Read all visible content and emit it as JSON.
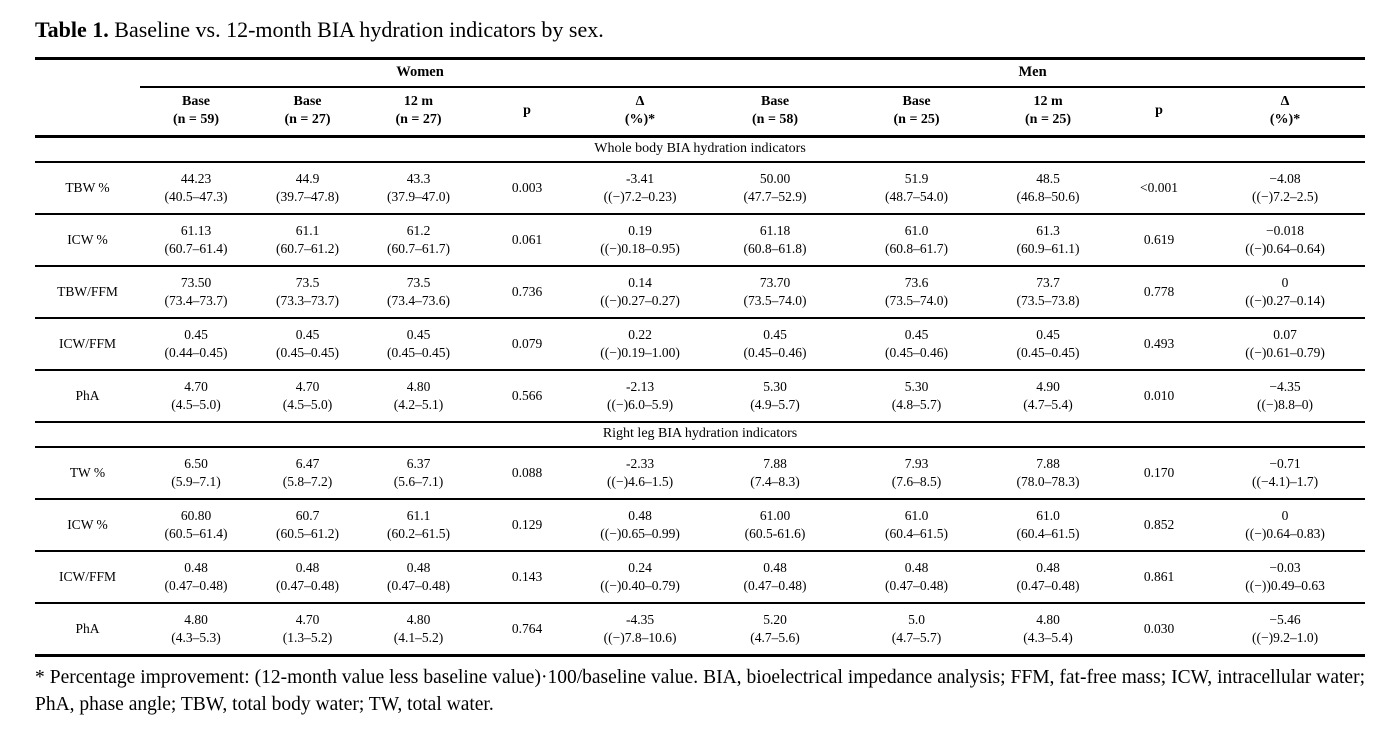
{
  "title": {
    "label": "Table 1.",
    "text": " Baseline vs. 12-month BIA hydration indicators by sex."
  },
  "table": {
    "groups": [
      {
        "label": "Women"
      },
      {
        "label": "Men"
      }
    ],
    "columns": [
      {
        "line1": "Base",
        "line2": "(n = 59)"
      },
      {
        "line1": "Base",
        "line2": "(n = 27)"
      },
      {
        "line1": "12 m",
        "line2": "(n = 27)"
      },
      {
        "line1": "p",
        "line2": ""
      },
      {
        "line1": "Δ",
        "line2": "(%)*"
      },
      {
        "line1": "Base",
        "line2": "(n = 58)"
      },
      {
        "line1": "Base",
        "line2": "(n = 25)"
      },
      {
        "line1": "12 m",
        "line2": "(n = 25)"
      },
      {
        "line1": "p",
        "line2": ""
      },
      {
        "line1": "Δ",
        "line2": "(%)*"
      }
    ],
    "sections": [
      {
        "header": "Whole body BIA hydration indicators",
        "rows": [
          {
            "label": "TBW %",
            "cells": [
              {
                "main": "44.23",
                "range": "(40.5–47.3)"
              },
              {
                "main": "44.9",
                "range": "(39.7–47.8)"
              },
              {
                "main": "43.3",
                "range": "(37.9–47.0)"
              },
              {
                "main": "0.003",
                "range": ""
              },
              {
                "main": "-3.41",
                "range": "((−)7.2–0.23)"
              },
              {
                "main": "50.00",
                "range": "(47.7–52.9)"
              },
              {
                "main": "51.9",
                "range": "(48.7–54.0)"
              },
              {
                "main": "48.5",
                "range": "(46.8–50.6)"
              },
              {
                "main": "<0.001",
                "range": ""
              },
              {
                "main": "−4.08",
                "range": "((−)7.2–2.5)"
              }
            ]
          },
          {
            "label": "ICW %",
            "cells": [
              {
                "main": "61.13",
                "range": "(60.7–61.4)"
              },
              {
                "main": "61.1",
                "range": "(60.7–61.2)"
              },
              {
                "main": "61.2",
                "range": "(60.7–61.7)"
              },
              {
                "main": "0.061",
                "range": ""
              },
              {
                "main": "0.19",
                "range": "((−)0.18–0.95)"
              },
              {
                "main": "61.18",
                "range": "(60.8–61.8)"
              },
              {
                "main": "61.0",
                "range": "(60.8–61.7)"
              },
              {
                "main": "61.3",
                "range": "(60.9–61.1)"
              },
              {
                "main": "0.619",
                "range": ""
              },
              {
                "main": "−0.018",
                "range": "((−)0.64–0.64)"
              }
            ]
          },
          {
            "label": "TBW/FFM",
            "cells": [
              {
                "main": "73.50",
                "range": "(73.4–73.7)"
              },
              {
                "main": "73.5",
                "range": "(73.3–73.7)"
              },
              {
                "main": "73.5",
                "range": "(73.4–73.6)"
              },
              {
                "main": "0.736",
                "range": ""
              },
              {
                "main": "0.14",
                "range": "((−)0.27–0.27)"
              },
              {
                "main": "73.70",
                "range": "(73.5–74.0)"
              },
              {
                "main": "73.6",
                "range": "(73.5–74.0)"
              },
              {
                "main": "73.7",
                "range": "(73.5–73.8)"
              },
              {
                "main": "0.778",
                "range": ""
              },
              {
                "main": "0",
                "range": "((−)0.27–0.14)"
              }
            ]
          },
          {
            "label": "ICW/FFM",
            "cells": [
              {
                "main": "0.45",
                "range": "(0.44–0.45)"
              },
              {
                "main": "0.45",
                "range": "(0.45–0.45)"
              },
              {
                "main": "0.45",
                "range": "(0.45–0.45)"
              },
              {
                "main": "0.079",
                "range": ""
              },
              {
                "main": "0.22",
                "range": "((−)0.19–1.00)"
              },
              {
                "main": "0.45",
                "range": "(0.45–0.46)"
              },
              {
                "main": "0.45",
                "range": "(0.45–0.46)"
              },
              {
                "main": "0.45",
                "range": "(0.45–0.45)"
              },
              {
                "main": "0.493",
                "range": ""
              },
              {
                "main": "0.07",
                "range": "((−)0.61–0.79)"
              }
            ]
          },
          {
            "label": "PhA",
            "cells": [
              {
                "main": "4.70",
                "range": "(4.5–5.0)"
              },
              {
                "main": "4.70",
                "range": "(4.5–5.0)"
              },
              {
                "main": "4.80",
                "range": "(4.2–5.1)"
              },
              {
                "main": "0.566",
                "range": ""
              },
              {
                "main": "-2.13",
                "range": "((−)6.0–5.9)"
              },
              {
                "main": "5.30",
                "range": "(4.9–5.7)"
              },
              {
                "main": "5.30",
                "range": "(4.8–5.7)"
              },
              {
                "main": "4.90",
                "range": "(4.7–5.4)"
              },
              {
                "main": "0.010",
                "range": ""
              },
              {
                "main": "−4.35",
                "range": "((−)8.8–0)"
              }
            ]
          }
        ]
      },
      {
        "header": "Right leg BIA hydration indicators",
        "rows": [
          {
            "label": "TW %",
            "cells": [
              {
                "main": "6.50",
                "range": "(5.9–7.1)"
              },
              {
                "main": "6.47",
                "range": "(5.8–7.2)"
              },
              {
                "main": "6.37",
                "range": "(5.6–7.1)"
              },
              {
                "main": "0.088",
                "range": ""
              },
              {
                "main": "-2.33",
                "range": "((−)4.6–1.5)"
              },
              {
                "main": "7.88",
                "range": "(7.4–8.3)"
              },
              {
                "main": "7.93",
                "range": "(7.6–8.5)"
              },
              {
                "main": "7.88",
                "range": "(78.0–78.3)"
              },
              {
                "main": "0.170",
                "range": ""
              },
              {
                "main": "−0.71",
                "range": "((−4.1)–1.7)"
              }
            ]
          },
          {
            "label": "ICW %",
            "cells": [
              {
                "main": "60.80",
                "range": "(60.5–61.4)"
              },
              {
                "main": "60.7",
                "range": "(60.5–61.2)"
              },
              {
                "main": "61.1",
                "range": "(60.2–61.5)"
              },
              {
                "main": "0.129",
                "range": ""
              },
              {
                "main": "0.48",
                "range": "((−)0.65–0.99)"
              },
              {
                "main": "61.00",
                "range": "(60.5-61.6)"
              },
              {
                "main": "61.0",
                "range": "(60.4–61.5)"
              },
              {
                "main": "61.0",
                "range": "(60.4–61.5)"
              },
              {
                "main": "0.852",
                "range": ""
              },
              {
                "main": "0",
                "range": "((−)0.64–0.83)"
              }
            ]
          },
          {
            "label": "ICW/FFM",
            "cells": [
              {
                "main": "0.48",
                "range": "(0.47–0.48)"
              },
              {
                "main": "0.48",
                "range": "(0.47–0.48)"
              },
              {
                "main": "0.48",
                "range": "(0.47–0.48)"
              },
              {
                "main": "0.143",
                "range": ""
              },
              {
                "main": "0.24",
                "range": "((−)0.40–0.79)"
              },
              {
                "main": "0.48",
                "range": "(0.47–0.48)"
              },
              {
                "main": "0.48",
                "range": "(0.47–0.48)"
              },
              {
                "main": "0.48",
                "range": "(0.47–0.48)"
              },
              {
                "main": "0.861",
                "range": ""
              },
              {
                "main": "−0.03",
                "range": "((−))0.49–0.63"
              }
            ]
          },
          {
            "label": "PhA",
            "cells": [
              {
                "main": "4.80",
                "range": "(4.3–5.3)"
              },
              {
                "main": "4.70",
                "range": "(1.3–5.2)"
              },
              {
                "main": "4.80",
                "range": "(4.1–5.2)"
              },
              {
                "main": "0.764",
                "range": ""
              },
              {
                "main": "-4.35",
                "range": "((−)7.8–10.6)"
              },
              {
                "main": "5.20",
                "range": "(4.7–5.6)"
              },
              {
                "main": "5.0",
                "range": "(4.7–5.7)"
              },
              {
                "main": "4.80",
                "range": "(4.3–5.4)"
              },
              {
                "main": "0.030",
                "range": ""
              },
              {
                "main": "−5.46",
                "range": "((−)9.2–1.0)"
              }
            ]
          }
        ]
      }
    ]
  },
  "footnote": "* Percentage improvement: (12-month value less baseline value)·100/baseline value. BIA, bioelectrical impedance analysis; FFM, fat-free mass; ICW, intracellular water; PhA, phase angle; TBW, total body water; TW, total water."
}
